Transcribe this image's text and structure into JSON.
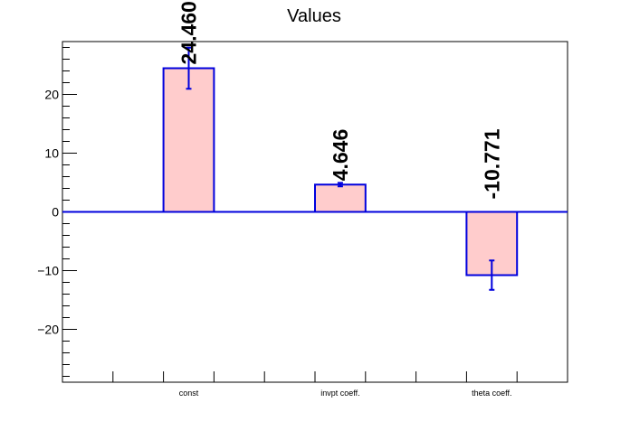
{
  "chart_data": {
    "type": "bar",
    "title": "Values",
    "categories": [
      "const",
      "invpt coeff.",
      "theta coeff."
    ],
    "values": [
      24.46,
      4.646,
      -10.771
    ],
    "value_labels": [
      "24.460",
      "4.646",
      "-10.771"
    ],
    "errors": [
      3.5,
      0.3,
      2.5
    ],
    "ylim": [
      -29,
      29
    ],
    "yticks": [
      -20,
      -10,
      0,
      10,
      20
    ],
    "ytick_labels": [
      "−20",
      "−10",
      "0",
      "10",
      "20"
    ],
    "xlabel": "",
    "ylabel": "",
    "grid": false,
    "colors": {
      "bar_fill": "#ffcccc",
      "bar_edge": "#0000dd",
      "text": "#000000"
    }
  }
}
